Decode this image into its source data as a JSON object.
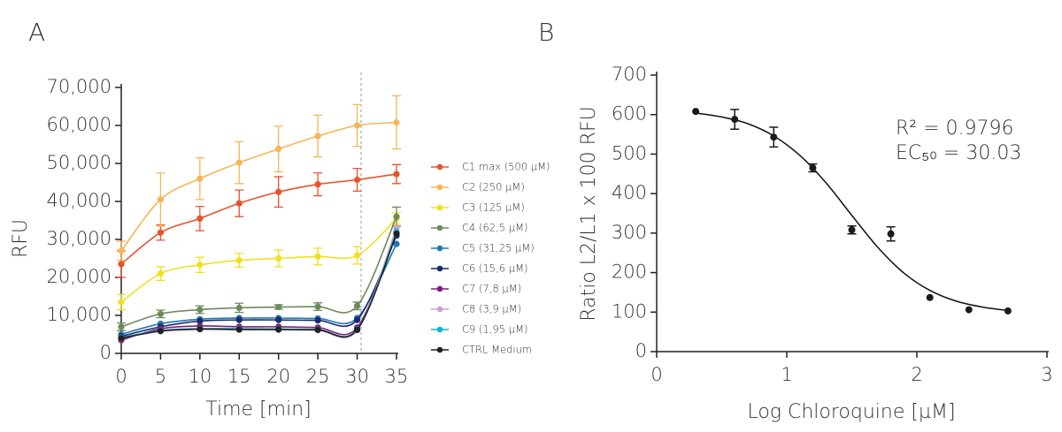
{
  "chart_data": [
    {
      "type": "line",
      "title": "A",
      "xlabel": "Time [min]",
      "ylabel": "RFU",
      "x": [
        0,
        5,
        10,
        15,
        20,
        25,
        30,
        35
      ],
      "xlim": [
        0,
        35
      ],
      "xticks": [
        0,
        5,
        10,
        15,
        20,
        25,
        30,
        35
      ],
      "ylim": [
        0,
        70000
      ],
      "yticks": [
        0,
        {
          "value": 10000,
          "label": "10,000"
        },
        {
          "value": 20000,
          "label": "20,000"
        },
        {
          "value": 30000,
          "label": "30,000"
        },
        {
          "value": 40000,
          "label": "40,000"
        },
        {
          "value": 50000,
          "label": "50,000"
        },
        {
          "value": 60000,
          "label": "60,000"
        },
        {
          "value": 70000,
          "label": "70,000"
        }
      ],
      "vline": 30.5,
      "series": [
        {
          "name": "C1 max (500 µM)",
          "color": "#e8522a",
          "values": [
            23500,
            31800,
            35500,
            39500,
            42500,
            44500,
            45700,
            47200
          ],
          "errors": [
            3500,
            2000,
            3200,
            3500,
            4000,
            3000,
            3000,
            2500
          ]
        },
        {
          "name": "C2 (250 µM)",
          "color": "#f6b656",
          "values": [
            27000,
            40500,
            46000,
            50200,
            53800,
            57200,
            60000,
            60800
          ],
          "errors": [
            2500,
            7000,
            5500,
            5500,
            6000,
            5500,
            5500,
            7000
          ]
        },
        {
          "name": "C3 (125 µM)",
          "color": "#f0e020",
          "values": [
            13500,
            21000,
            23300,
            24500,
            25000,
            25500,
            25800,
            35500
          ],
          "errors": [
            2000,
            1800,
            2000,
            1800,
            2200,
            2200,
            2300,
            1500
          ]
        },
        {
          "name": "C4 (62,5 µM)",
          "color": "#6e8a5c",
          "values": [
            7000,
            10400,
            11500,
            12000,
            12200,
            12300,
            12500,
            36000
          ],
          "errors": [
            1000,
            1000,
            1000,
            1200,
            600,
            1000,
            1000,
            2500
          ]
        },
        {
          "name": "C5 (31,25 µM)",
          "color": "#1f78b4",
          "values": [
            5000,
            7800,
            9000,
            9300,
            9300,
            9200,
            9300,
            28800
          ]
        },
        {
          "name": "C6 (15,6 µM)",
          "color": "#1a2a6c",
          "values": [
            4500,
            7000,
            8500,
            8800,
            8800,
            8700,
            8800,
            31000
          ]
        },
        {
          "name": "C7 (7,8 µM)",
          "color": "#7b1f7a",
          "values": [
            3500,
            6500,
            7200,
            7000,
            7000,
            6800,
            6800,
            31800
          ]
        },
        {
          "name": "C8 (3,9 µM)",
          "color": "#c9a0d0",
          "values": [
            4000,
            5800,
            6300,
            6200,
            6200,
            6100,
            6100,
            33000
          ]
        },
        {
          "name": "C9 (1,95 µM)",
          "color": "#1ab0d8",
          "values": [
            4200,
            6000,
            6500,
            6500,
            6400,
            6300,
            6300,
            32000
          ]
        },
        {
          "name": "CTRL Medium",
          "color": "#222222",
          "values": [
            4000,
            5900,
            6400,
            6300,
            6300,
            6200,
            6200,
            31500
          ]
        }
      ]
    },
    {
      "type": "scatter",
      "title": "B",
      "xlabel": "Log Chloroquine [µM]",
      "ylabel": "Ratio L2/L1 x 100 RFU",
      "xlim": [
        0,
        3
      ],
      "xticks": [
        0,
        1,
        2,
        3
      ],
      "ylim": [
        0,
        700
      ],
      "yticks": [
        0,
        100,
        200,
        300,
        400,
        500,
        600,
        700
      ],
      "annotations": [
        "R² = 0.9796",
        "EC₅₀ = 30.03"
      ],
      "color": "#1a1a1a",
      "x": [
        0.3,
        0.6,
        0.9,
        1.2,
        1.5,
        1.8,
        2.1,
        2.4,
        2.7
      ],
      "values": [
        608,
        588,
        543,
        465,
        308,
        298,
        137,
        106,
        103
      ],
      "errors": [
        0,
        25,
        25,
        10,
        10,
        18,
        0,
        0,
        0
      ],
      "curve": {
        "x": [
          0.3,
          0.5,
          0.7,
          0.9,
          1.1,
          1.3,
          1.5,
          1.7,
          1.9,
          2.1,
          2.3,
          2.5,
          2.7
        ],
        "values": [
          604,
          594,
          577,
          546,
          497,
          428,
          345,
          264,
          199,
          155,
          128,
          113,
          104
        ]
      }
    }
  ]
}
